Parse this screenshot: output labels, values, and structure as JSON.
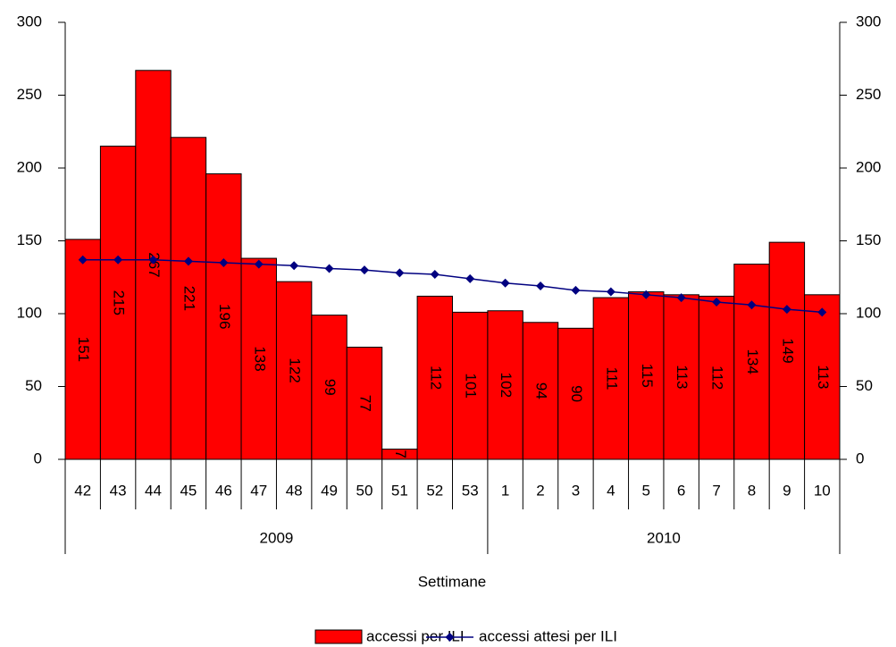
{
  "chart_data": {
    "type": "bar",
    "categories": [
      "42",
      "43",
      "44",
      "45",
      "46",
      "47",
      "48",
      "49",
      "50",
      "51",
      "52",
      "53",
      "1",
      "2",
      "3",
      "4",
      "5",
      "6",
      "7",
      "8",
      "9",
      "10"
    ],
    "groups": [
      {
        "label": "2009",
        "count": 12
      },
      {
        "label": "2010",
        "count": 10
      }
    ],
    "x_label": "Settimane",
    "series": [
      {
        "name": "accessi per ILI",
        "type": "bar",
        "color": "#ff0000",
        "values": [
          151,
          215,
          267,
          221,
          196,
          138,
          122,
          99,
          77,
          7,
          112,
          101,
          102,
          94,
          90,
          111,
          115,
          113,
          112,
          134,
          149,
          113
        ]
      },
      {
        "name": "accessi attesi per ILI",
        "type": "line",
        "color": "#000080",
        "values": [
          137,
          137,
          137,
          136,
          135,
          134,
          133,
          131,
          130,
          128,
          127,
          124,
          121,
          119,
          116,
          115,
          113,
          111,
          108,
          106,
          103,
          101
        ]
      }
    ],
    "ylim": [
      0,
      300
    ],
    "yticks": [
      0,
      50,
      100,
      150,
      200,
      250,
      300
    ],
    "y2lim": [
      0,
      300
    ],
    "y2ticks": [
      0,
      50,
      100,
      150,
      200,
      250,
      300
    ],
    "legend": "bottom"
  }
}
